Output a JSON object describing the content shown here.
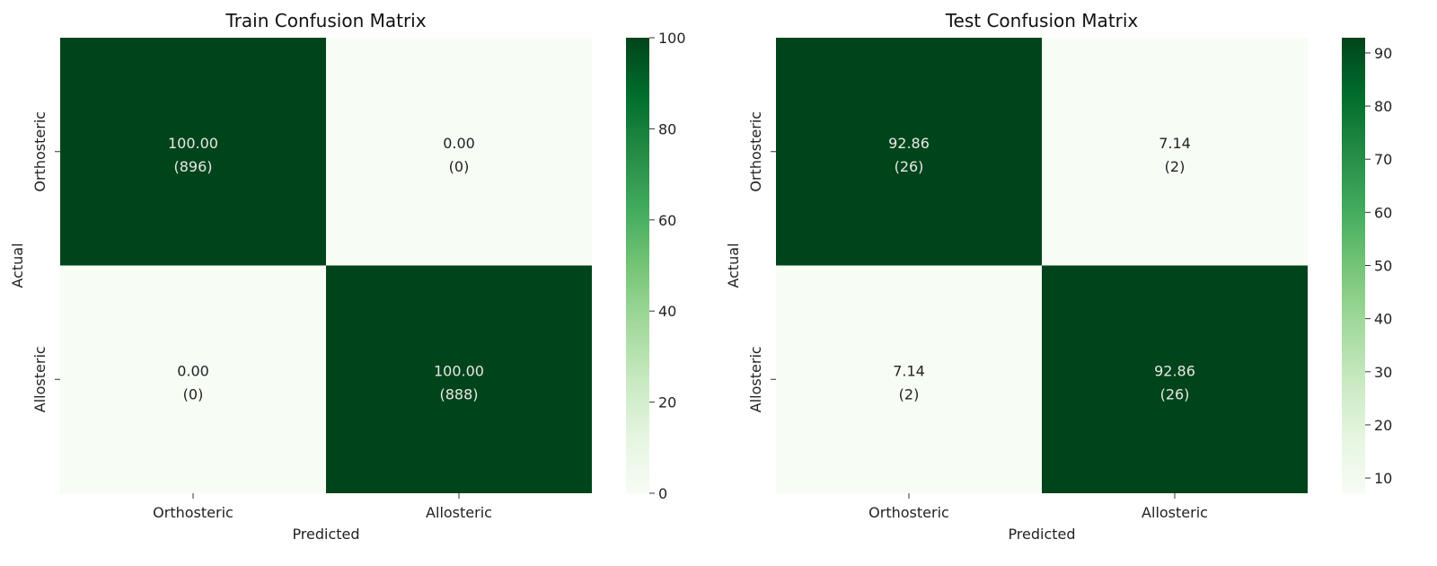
{
  "chart_data": [
    {
      "type": "heatmap",
      "title": "Train Confusion Matrix",
      "xlabel": "Predicted",
      "ylabel": "Actual",
      "x_categories": [
        "Orthosteric",
        "Allosteric"
      ],
      "y_categories": [
        "Orthosteric",
        "Allosteric"
      ],
      "values": [
        [
          100.0,
          0.0
        ],
        [
          0.0,
          100.0
        ]
      ],
      "cell_labels": [
        [
          "100.00",
          "0.00"
        ],
        [
          "0.00",
          "100.00"
        ]
      ],
      "counts": [
        [
          "(896)",
          "(0)"
        ],
        [
          "(0)",
          "(888)"
        ]
      ],
      "colorbar": {
        "min": 0,
        "max": 100,
        "ticks": [
          "0",
          "20",
          "40",
          "60",
          "80",
          "100"
        ],
        "tick_values": [
          0,
          20,
          40,
          60,
          80,
          100
        ]
      },
      "colormap": "Greens"
    },
    {
      "type": "heatmap",
      "title": "Test Confusion Matrix",
      "xlabel": "Predicted",
      "ylabel": "Actual",
      "x_categories": [
        "Orthosteric",
        "Allosteric"
      ],
      "y_categories": [
        "Orthosteric",
        "Allosteric"
      ],
      "values": [
        [
          92.86,
          7.14
        ],
        [
          7.14,
          92.86
        ]
      ],
      "cell_labels": [
        [
          "92.86",
          "7.14"
        ],
        [
          "7.14",
          "92.86"
        ]
      ],
      "counts": [
        [
          "(26)",
          "(2)"
        ],
        [
          "(2)",
          "(26)"
        ]
      ],
      "colorbar": {
        "min": 7.14,
        "max": 92.86,
        "ticks": [
          "10",
          "20",
          "30",
          "40",
          "50",
          "60",
          "70",
          "80",
          "90"
        ],
        "tick_values": [
          10,
          20,
          30,
          40,
          50,
          60,
          70,
          80,
          90
        ]
      },
      "colormap": "Greens"
    }
  ],
  "colors": {
    "low": "#f4faf3",
    "high": "#00441b",
    "text_light": "#e8e8e8",
    "text_dark": "#222222"
  }
}
